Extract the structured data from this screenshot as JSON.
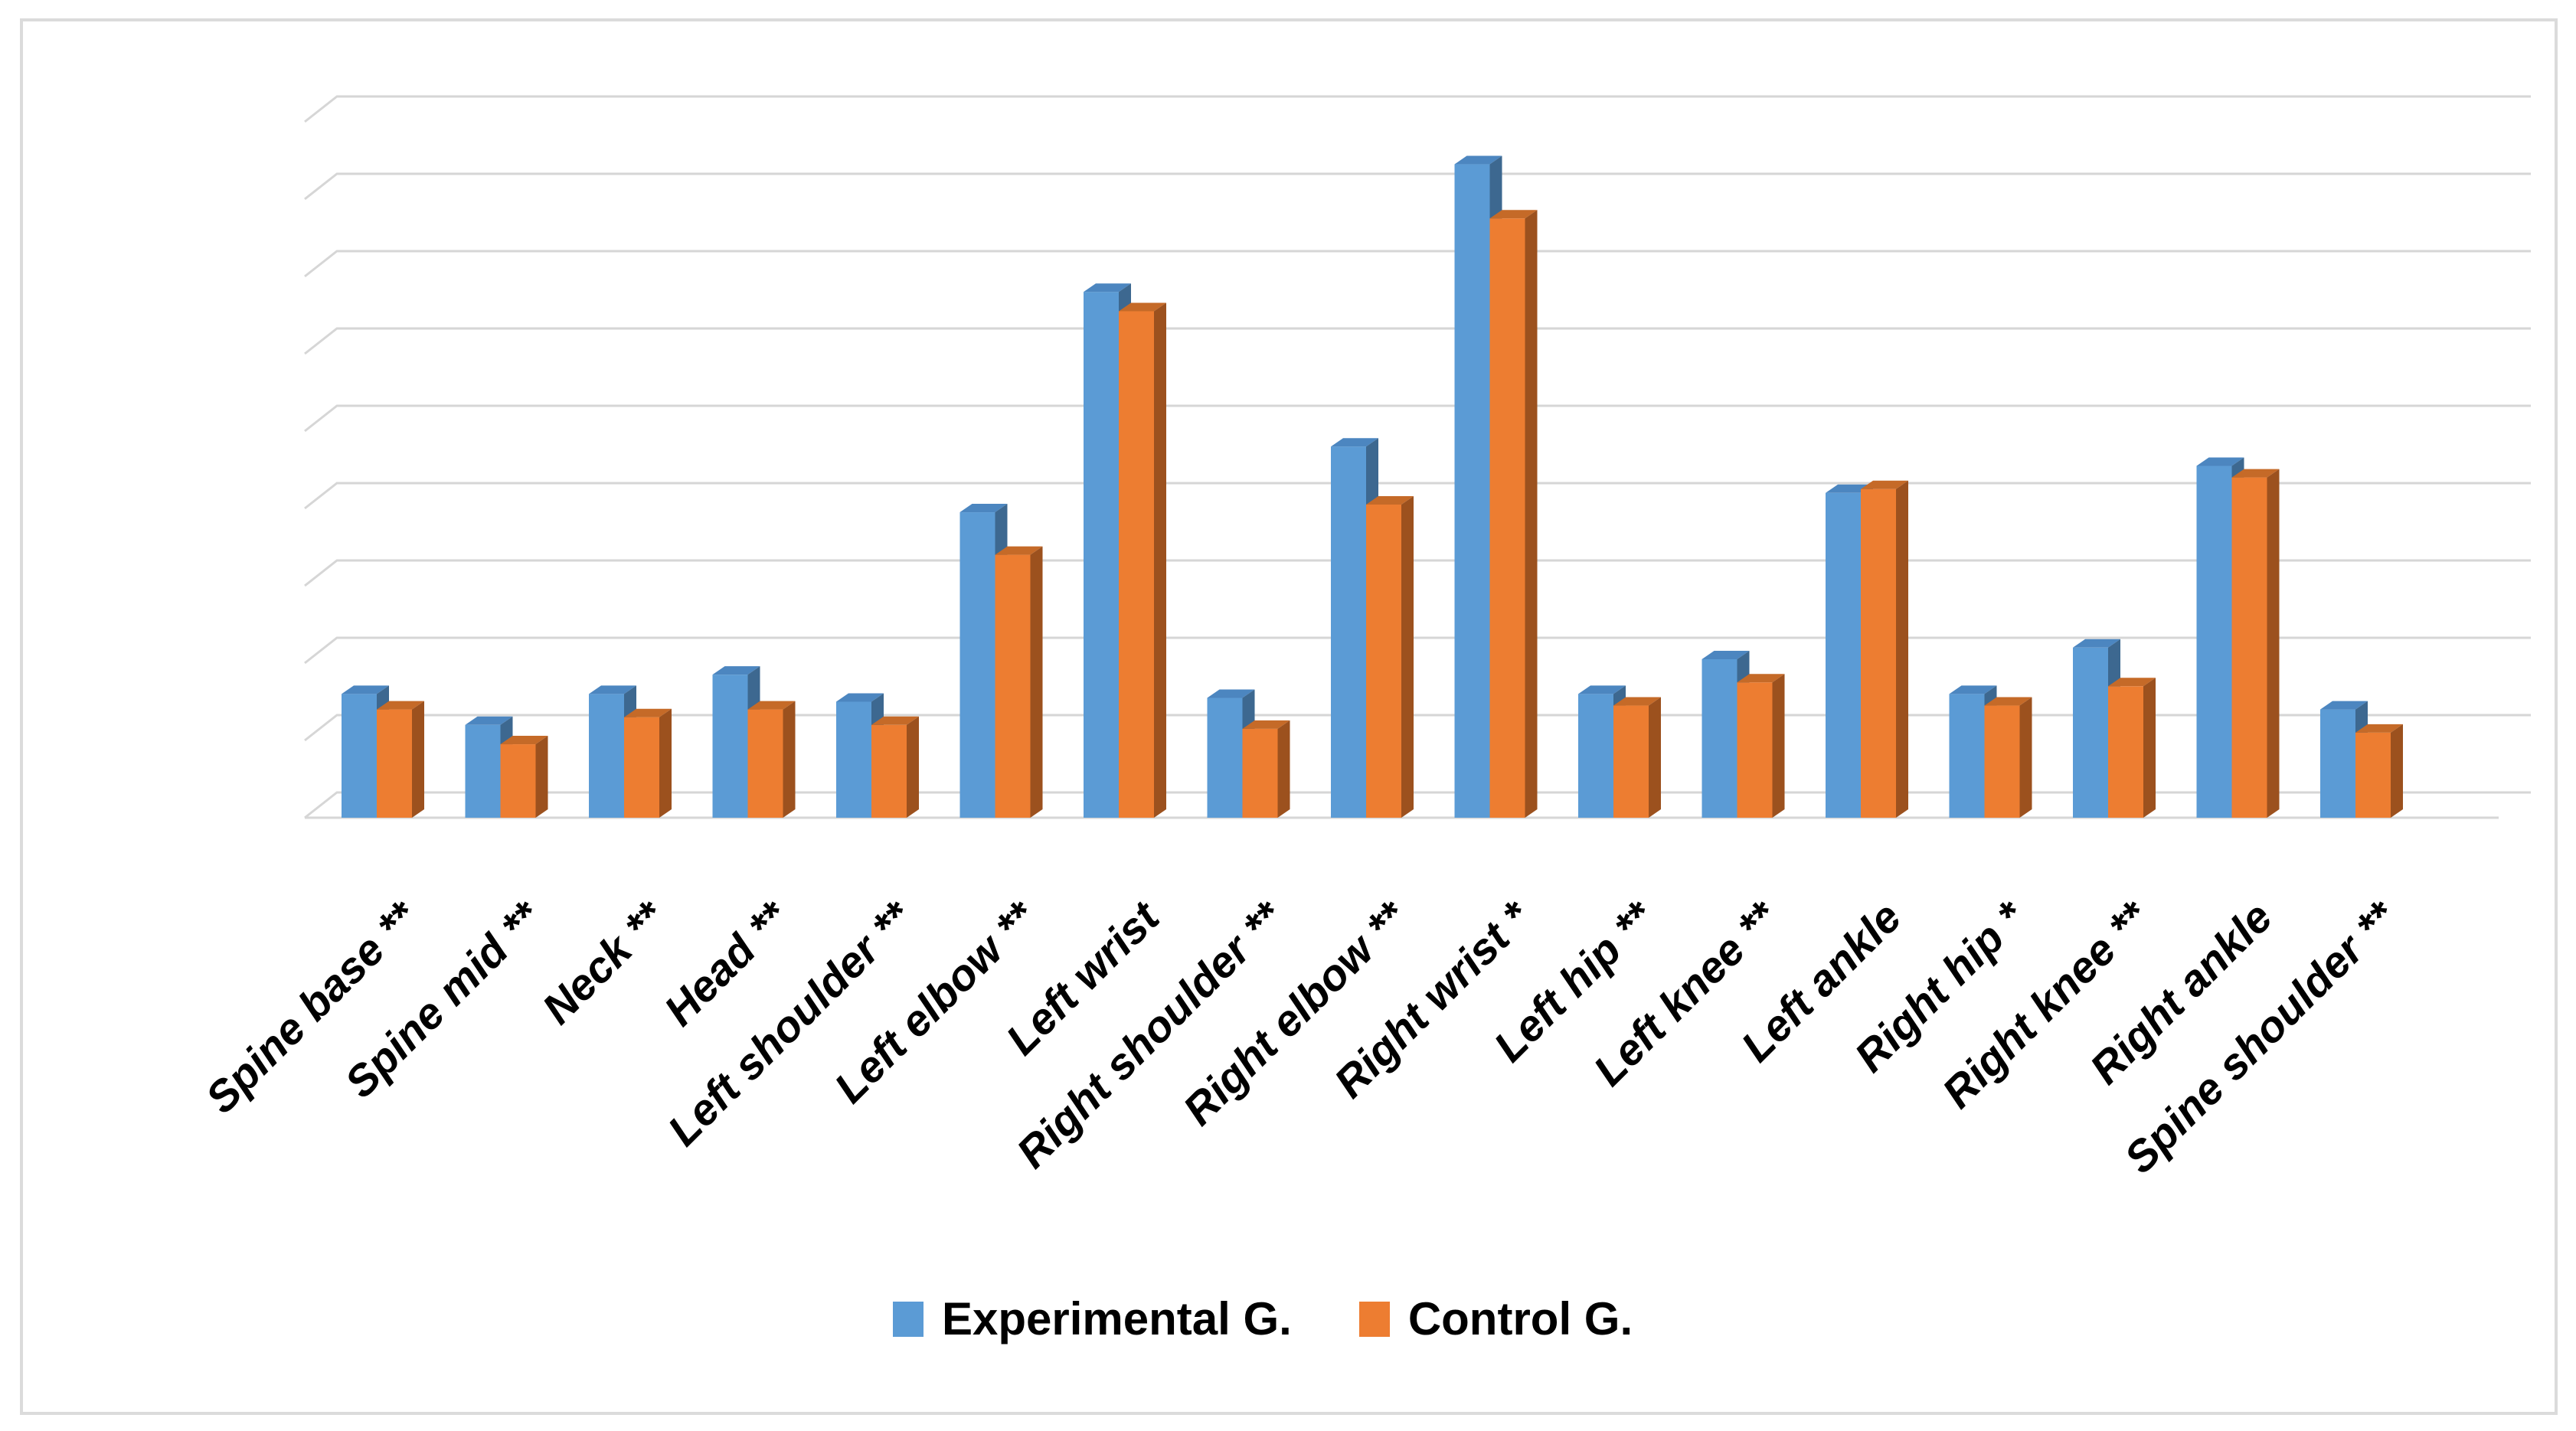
{
  "chart_data": {
    "type": "bar",
    "style": "3d-clustered-column",
    "title": "",
    "xlabel": "",
    "ylabel": "",
    "y_tick_labels_visible": false,
    "ylim": [
      0,
      9
    ],
    "gridline_step": 1,
    "gridline_count": 10,
    "grid_on": true,
    "legend_position": "bottom-center",
    "categories": [
      "Spine base **",
      "Spine mid **",
      "Neck **",
      "Head **",
      "Left shoulder **",
      "Left elbow **",
      "Left wrist",
      "Right shoulder **",
      "Right elbow **",
      "Right wrist *",
      "Left hip **",
      "Left knee **",
      "Left ankle",
      "Right hip *",
      "Right knee **",
      "Right ankle",
      "Spine shoulder **"
    ],
    "series": [
      {
        "name": "Experimental G.",
        "color": "#5B9BD5",
        "color_top": "#4C86C0",
        "color_side": "#3D6890",
        "values": [
          1.6,
          1.2,
          1.6,
          1.85,
          1.5,
          3.95,
          6.8,
          1.55,
          4.8,
          8.45,
          1.6,
          2.05,
          4.2,
          1.6,
          2.2,
          4.55,
          1.4
        ]
      },
      {
        "name": "Control G.",
        "color": "#ED7D31",
        "color_top": "#C56A28",
        "color_side": "#9C511E",
        "values": [
          1.4,
          0.95,
          1.3,
          1.4,
          1.2,
          3.4,
          6.55,
          1.15,
          4.05,
          7.75,
          1.45,
          1.75,
          4.25,
          1.45,
          1.7,
          4.4,
          1.1
        ]
      }
    ],
    "colors": {
      "grid": "#D6D6D6",
      "frame_border": "#DBDBDB",
      "background": "#FFFFFF",
      "label_text": "#000000"
    }
  },
  "legend": {
    "items": [
      {
        "label": "Experimental G.",
        "color": "#5B9BD5"
      },
      {
        "label": "Control G.",
        "color": "#ED7D31"
      }
    ]
  }
}
